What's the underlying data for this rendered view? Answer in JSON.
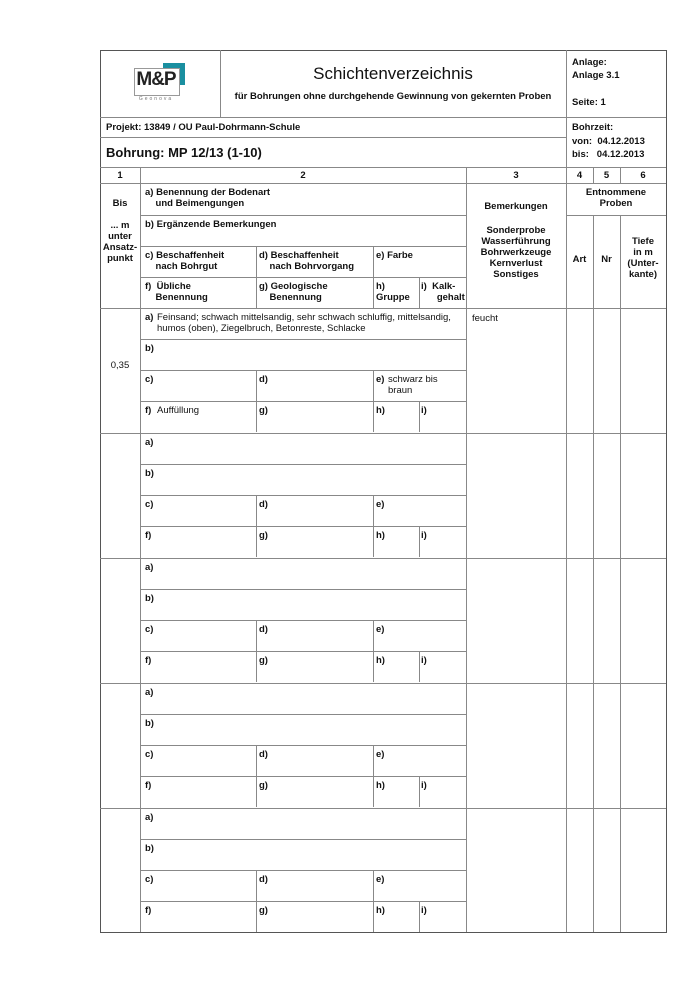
{
  "header": {
    "title": "Schichtenverzeichnis",
    "subtitle": "für Bohrungen ohne durchgehende Gewinnung von gekernten Proben",
    "logo_text": "M&P",
    "logo_subtext": "Geonova",
    "logo_accent": "#1a8fa0",
    "anlage_label": "Anlage:",
    "anlage_value": "Anlage 3.1",
    "seite": "Seite: 1",
    "projekt": "Projekt: 13849 / OU Paul-Dohrmann-Schule",
    "bohrung": "Bohrung: MP 12/13 (1-10)",
    "bohrzeit_label": "Bohrzeit:",
    "von": "von:  04.12.2013",
    "bis": "bis:   04.12.2013"
  },
  "columns": {
    "numbers": [
      "1",
      "2",
      "3",
      "4",
      "5",
      "6"
    ],
    "col1": "Bis\n\n... m\nunter\nAnsatz-\npunkt",
    "a": "a) Benennung der Bodenart\n    und Beimengungen",
    "b": "b) Ergänzende Bemerkungen",
    "c": "c) Beschaffenheit\n    nach Bohrgut",
    "d": "d) Beschaffenheit\n    nach Bohrvorgang",
    "e": "e) Farbe",
    "f": "f)  Übliche\n    Benennung",
    "g": "g) Geologische\n    Benennung",
    "h": "h)\nGruppe",
    "i": "i)  Kalk-\n      gehalt",
    "col3_title": "Bemerkungen",
    "col3_items": "Sonderprobe\nWasserführung\nBohrwerkzeuge\nKernverlust\nSonstiges",
    "samples": "Entnommene\nProben",
    "art": "Art",
    "nr": "Nr",
    "tiefe": "Tiefe\nin m\n(Unter-\nkante)"
  },
  "field_labels": {
    "a": "a)",
    "b": "b)",
    "c": "c)",
    "d": "d)",
    "e": "e)",
    "f": "f)",
    "g": "g)",
    "h": "h)",
    "i": "i)"
  },
  "layers": [
    {
      "depth": "0,35",
      "a": "Feinsand; schwach mittelsandig, sehr schwach schluffig, mittelsandig, humos (oben), Ziegelbruch, Betonreste, Schlacke",
      "b": "",
      "c": "",
      "d": "",
      "e": "schwarz bis braun",
      "f": "Auffüllung",
      "g": "",
      "h": "",
      "i": "",
      "remarks": "feucht"
    },
    {
      "depth": "",
      "a": "",
      "b": "",
      "c": "",
      "d": "",
      "e": "",
      "f": "",
      "g": "",
      "h": "",
      "i": "",
      "remarks": ""
    },
    {
      "depth": "",
      "a": "",
      "b": "",
      "c": "",
      "d": "",
      "e": "",
      "f": "",
      "g": "",
      "h": "",
      "i": "",
      "remarks": ""
    },
    {
      "depth": "",
      "a": "",
      "b": "",
      "c": "",
      "d": "",
      "e": "",
      "f": "",
      "g": "",
      "h": "",
      "i": "",
      "remarks": ""
    },
    {
      "depth": "",
      "a": "",
      "b": "",
      "c": "",
      "d": "",
      "e": "",
      "f": "",
      "g": "",
      "h": "",
      "i": "",
      "remarks": ""
    }
  ]
}
